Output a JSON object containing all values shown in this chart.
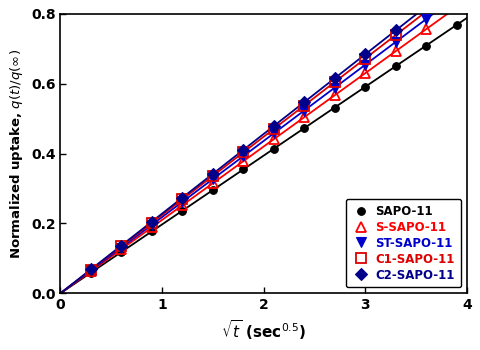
{
  "title": "",
  "xlabel": "$\\sqrt{t}$ (sec$^{0.5}$)",
  "ylabel": "Normalized uptake, $q(t)/q(\\infty)$",
  "xlim": [
    0,
    4
  ],
  "ylim": [
    0,
    0.8
  ],
  "xticks": [
    0,
    1,
    2,
    3,
    4
  ],
  "yticks": [
    0.0,
    0.2,
    0.4,
    0.6,
    0.8
  ],
  "series": [
    {
      "label": "SAPO-11",
      "color": "#000000",
      "line_color": "#000000",
      "marker": "o",
      "markersize": 5.5,
      "fillstyle": "full",
      "slope": 0.197
    },
    {
      "label": "S-SAPO-11",
      "color": "#ff0000",
      "line_color": "#ff0000",
      "marker": "^",
      "markersize": 6.5,
      "fillstyle": "none",
      "slope": 0.21
    },
    {
      "label": "ST-SAPO-11",
      "color": "#0000cc",
      "line_color": "#0000cc",
      "marker": "v",
      "markersize": 6.5,
      "fillstyle": "full",
      "slope": 0.218
    },
    {
      "label": "C1-SAPO-11",
      "color": "#dd0000",
      "line_color": "#dd0000",
      "marker": "s",
      "markersize": 6.5,
      "fillstyle": "none",
      "slope": 0.224
    },
    {
      "label": "C2-SAPO-11",
      "color": "#00008b",
      "line_color": "#00008b",
      "marker": "D",
      "markersize": 6.0,
      "fillstyle": "full",
      "slope": 0.228
    }
  ],
  "legend_colors": [
    "#000000",
    "#ff0000",
    "#0000cc",
    "#dd0000",
    "#00008b"
  ],
  "legend_loc": "lower right",
  "background_color": "#ffffff",
  "marker_interval": 0.3,
  "figwidth": 4.8,
  "figheight": 3.5
}
